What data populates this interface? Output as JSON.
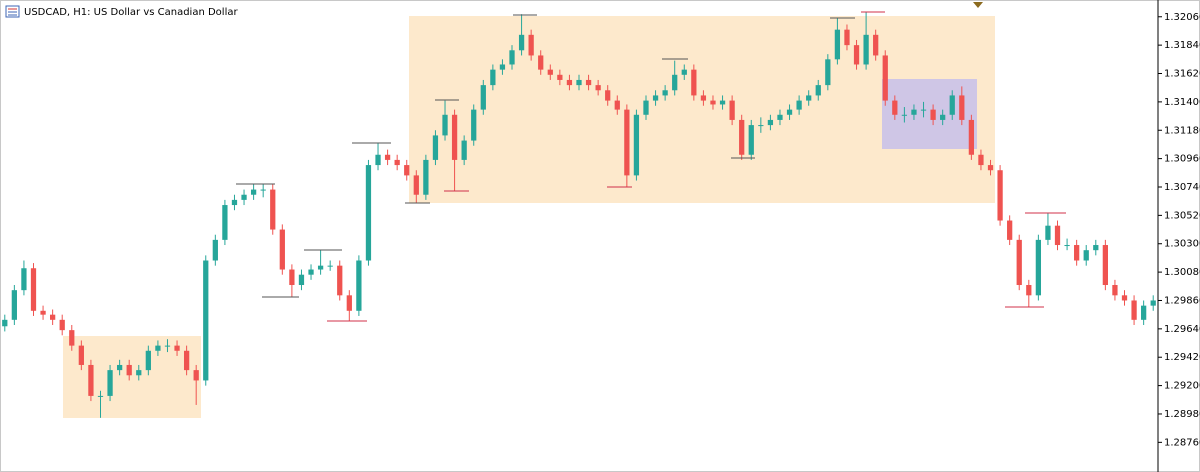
{
  "chart_data": {
    "type": "candlestick",
    "title": "USDCAD, H1:  US Dollar vs Canadian Dollar",
    "up_color": "#26a69a",
    "down_color": "#ef5350",
    "ylim": [
      1.2853,
      1.3219
    ],
    "yticks": [
      {
        "value": 1.3206,
        "label": "1.32060"
      },
      {
        "value": 1.3184,
        "label": "1.31840"
      },
      {
        "value": 1.3162,
        "label": "1.31620"
      },
      {
        "value": 1.314,
        "label": "1.31400"
      },
      {
        "value": 1.3118,
        "label": "1.31180"
      },
      {
        "value": 1.3096,
        "label": "1.30960"
      },
      {
        "value": 1.3074,
        "label": "1.30740"
      },
      {
        "value": 1.3052,
        "label": "1.30520"
      },
      {
        "value": 1.303,
        "label": "1.30300"
      },
      {
        "value": 1.3008,
        "label": "1.30080"
      },
      {
        "value": 1.2986,
        "label": "1.29860"
      },
      {
        "value": 1.2964,
        "label": "1.29640"
      },
      {
        "value": 1.2942,
        "label": "1.29420"
      },
      {
        "value": 1.292,
        "label": "1.29200"
      },
      {
        "value": 1.2898,
        "label": "1.28980"
      },
      {
        "value": 1.2876,
        "label": "1.28760"
      }
    ],
    "candles": [
      [
        1.2966,
        1.2975,
        1.2962,
        1.2971
      ],
      [
        1.2971,
        1.2998,
        1.2967,
        1.2994
      ],
      [
        1.2994,
        1.3017,
        1.299,
        1.3011
      ],
      [
        1.3011,
        1.3015,
        1.2974,
        1.2978
      ],
      [
        1.2978,
        1.2982,
        1.2971,
        1.2975
      ],
      [
        1.2975,
        1.2979,
        1.2967,
        1.2971
      ],
      [
        1.2971,
        1.2975,
        1.2959,
        1.2963
      ],
      [
        1.2963,
        1.2967,
        1.2947,
        1.2951
      ],
      [
        1.2951,
        1.2955,
        1.2932,
        1.2936
      ],
      [
        1.2936,
        1.294,
        1.2908,
        1.2912
      ],
      [
        1.2912,
        1.2916,
        1.2895,
        1.2912
      ],
      [
        1.2912,
        1.2936,
        1.2908,
        1.2932
      ],
      [
        1.2932,
        1.294,
        1.2928,
        1.2936
      ],
      [
        1.2936,
        1.294,
        1.2924,
        1.2928
      ],
      [
        1.2928,
        1.2936,
        1.2924,
        1.2932
      ],
      [
        1.2932,
        1.2951,
        1.2928,
        1.2947
      ],
      [
        1.2947,
        1.2955,
        1.2943,
        1.2951
      ],
      [
        1.2951,
        1.2956,
        1.2946,
        1.2951
      ],
      [
        1.2951,
        1.2955,
        1.2943,
        1.2947
      ],
      [
        1.2947,
        1.2951,
        1.2928,
        1.2932
      ],
      [
        1.2932,
        1.2936,
        1.2905,
        1.2924
      ],
      [
        1.2924,
        1.3021,
        1.292,
        1.3017
      ],
      [
        1.3017,
        1.3037,
        1.3013,
        1.3033
      ],
      [
        1.3033,
        1.3064,
        1.3029,
        1.306
      ],
      [
        1.306,
        1.3068,
        1.3056,
        1.3064
      ],
      [
        1.3064,
        1.3072,
        1.306,
        1.3068
      ],
      [
        1.3068,
        1.3076,
        1.3064,
        1.3072
      ],
      [
        1.3072,
        1.3076,
        1.3066,
        1.3072
      ],
      [
        1.3072,
        1.3076,
        1.3037,
        1.3041
      ],
      [
        1.3041,
        1.3045,
        1.3006,
        1.301
      ],
      [
        1.301,
        1.3014,
        1.2989,
        1.2998
      ],
      [
        1.2998,
        1.301,
        1.2994,
        1.3006
      ],
      [
        1.3006,
        1.3014,
        1.3002,
        1.301
      ],
      [
        1.301,
        1.3025,
        1.3006,
        1.3013
      ],
      [
        1.3013,
        1.3017,
        1.3009,
        1.3013
      ],
      [
        1.3013,
        1.3017,
        1.2986,
        1.299
      ],
      [
        1.299,
        1.2994,
        1.297,
        1.2978
      ],
      [
        1.2978,
        1.3021,
        1.2974,
        1.3017
      ],
      [
        1.3017,
        1.3095,
        1.3013,
        1.3091
      ],
      [
        1.3091,
        1.3108,
        1.3087,
        1.3099
      ],
      [
        1.3099,
        1.3103,
        1.3091,
        1.3095
      ],
      [
        1.3095,
        1.3099,
        1.3087,
        1.3091
      ],
      [
        1.3091,
        1.3095,
        1.3079,
        1.3083
      ],
      [
        1.3083,
        1.3087,
        1.3062,
        1.3068
      ],
      [
        1.3068,
        1.3099,
        1.3064,
        1.3095
      ],
      [
        1.3095,
        1.3118,
        1.3091,
        1.3114
      ],
      [
        1.3114,
        1.3141,
        1.311,
        1.313
      ],
      [
        1.313,
        1.3134,
        1.3071,
        1.3095
      ],
      [
        1.3095,
        1.3114,
        1.3091,
        1.311
      ],
      [
        1.311,
        1.3138,
        1.3106,
        1.3134
      ],
      [
        1.3134,
        1.3157,
        1.313,
        1.3153
      ],
      [
        1.3153,
        1.3169,
        1.3149,
        1.3165
      ],
      [
        1.3165,
        1.3173,
        1.3161,
        1.3169
      ],
      [
        1.3169,
        1.3184,
        1.3165,
        1.318
      ],
      [
        1.318,
        1.3208,
        1.3176,
        1.3192
      ],
      [
        1.3192,
        1.3196,
        1.3172,
        1.3176
      ],
      [
        1.3176,
        1.318,
        1.3161,
        1.3165
      ],
      [
        1.3165,
        1.3169,
        1.3157,
        1.3161
      ],
      [
        1.3161,
        1.3165,
        1.3153,
        1.3157
      ],
      [
        1.3157,
        1.3161,
        1.3149,
        1.3153
      ],
      [
        1.3153,
        1.3161,
        1.3149,
        1.3157
      ],
      [
        1.3157,
        1.3161,
        1.3149,
        1.3153
      ],
      [
        1.3153,
        1.3157,
        1.3145,
        1.3149
      ],
      [
        1.3149,
        1.3153,
        1.3137,
        1.3141
      ],
      [
        1.3141,
        1.3145,
        1.313,
        1.3134
      ],
      [
        1.3134,
        1.3138,
        1.3074,
        1.3083
      ],
      [
        1.3083,
        1.3134,
        1.3079,
        1.313
      ],
      [
        1.313,
        1.3145,
        1.3126,
        1.3141
      ],
      [
        1.3141,
        1.3149,
        1.3137,
        1.3145
      ],
      [
        1.3145,
        1.3153,
        1.3141,
        1.3149
      ],
      [
        1.3149,
        1.3172,
        1.3145,
        1.3161
      ],
      [
        1.3161,
        1.3169,
        1.3157,
        1.3165
      ],
      [
        1.3165,
        1.3169,
        1.3141,
        1.3145
      ],
      [
        1.3145,
        1.3149,
        1.3137,
        1.3141
      ],
      [
        1.3141,
        1.3145,
        1.3134,
        1.3138
      ],
      [
        1.3138,
        1.3145,
        1.3134,
        1.3141
      ],
      [
        1.3141,
        1.3145,
        1.3122,
        1.3126
      ],
      [
        1.3126,
        1.313,
        1.3095,
        1.3099
      ],
      [
        1.3099,
        1.3126,
        1.3095,
        1.3122
      ],
      [
        1.3122,
        1.3128,
        1.3116,
        1.3122
      ],
      [
        1.3122,
        1.313,
        1.3118,
        1.3126
      ],
      [
        1.3126,
        1.3134,
        1.3122,
        1.313
      ],
      [
        1.313,
        1.3138,
        1.3126,
        1.3134
      ],
      [
        1.3134,
        1.3145,
        1.313,
        1.3141
      ],
      [
        1.3141,
        1.3149,
        1.3137,
        1.3145
      ],
      [
        1.3145,
        1.3157,
        1.3141,
        1.3153
      ],
      [
        1.3153,
        1.3177,
        1.3149,
        1.3173
      ],
      [
        1.3173,
        1.3205,
        1.3169,
        1.3196
      ],
      [
        1.3196,
        1.32,
        1.318,
        1.3184
      ],
      [
        1.3184,
        1.3188,
        1.3165,
        1.3169
      ],
      [
        1.3169,
        1.321,
        1.3165,
        1.3192
      ],
      [
        1.3192,
        1.3196,
        1.3172,
        1.3176
      ],
      [
        1.3176,
        1.318,
        1.3137,
        1.3141
      ],
      [
        1.3141,
        1.3145,
        1.3126,
        1.313
      ],
      [
        1.313,
        1.3136,
        1.3124,
        1.313
      ],
      [
        1.313,
        1.3138,
        1.3126,
        1.3134
      ],
      [
        1.3134,
        1.314,
        1.3128,
        1.3134
      ],
      [
        1.3134,
        1.3138,
        1.3122,
        1.3126
      ],
      [
        1.3126,
        1.3134,
        1.3122,
        1.313
      ],
      [
        1.313,
        1.3149,
        1.3126,
        1.3145
      ],
      [
        1.3145,
        1.3152,
        1.3122,
        1.3126
      ],
      [
        1.3126,
        1.313,
        1.3095,
        1.3099
      ],
      [
        1.3099,
        1.3103,
        1.3087,
        1.3091
      ],
      [
        1.3091,
        1.3095,
        1.3083,
        1.3087
      ],
      [
        1.3087,
        1.3091,
        1.3044,
        1.3048
      ],
      [
        1.3048,
        1.3052,
        1.3029,
        1.3033
      ],
      [
        1.3033,
        1.3037,
        1.2994,
        1.2998
      ],
      [
        1.2998,
        1.3002,
        1.2981,
        1.299
      ],
      [
        1.299,
        1.3037,
        1.2986,
        1.3033
      ],
      [
        1.3033,
        1.3054,
        1.3029,
        1.3044
      ],
      [
        1.3044,
        1.3048,
        1.3025,
        1.3029
      ],
      [
        1.3029,
        1.3034,
        1.3025,
        1.3029
      ],
      [
        1.3029,
        1.3033,
        1.3013,
        1.3017
      ],
      [
        1.3017,
        1.3029,
        1.3013,
        1.3025
      ],
      [
        1.3025,
        1.3033,
        1.3021,
        1.3029
      ],
      [
        1.3029,
        1.3033,
        1.2994,
        1.2998
      ],
      [
        1.2998,
        1.3002,
        1.2986,
        1.299
      ],
      [
        1.299,
        1.2994,
        1.2982,
        1.2986
      ],
      [
        1.2986,
        1.299,
        1.2967,
        1.2971
      ],
      [
        1.2971,
        1.2986,
        1.2967,
        1.2982
      ],
      [
        1.2982,
        1.299,
        1.2978,
        1.2986
      ]
    ]
  }
}
